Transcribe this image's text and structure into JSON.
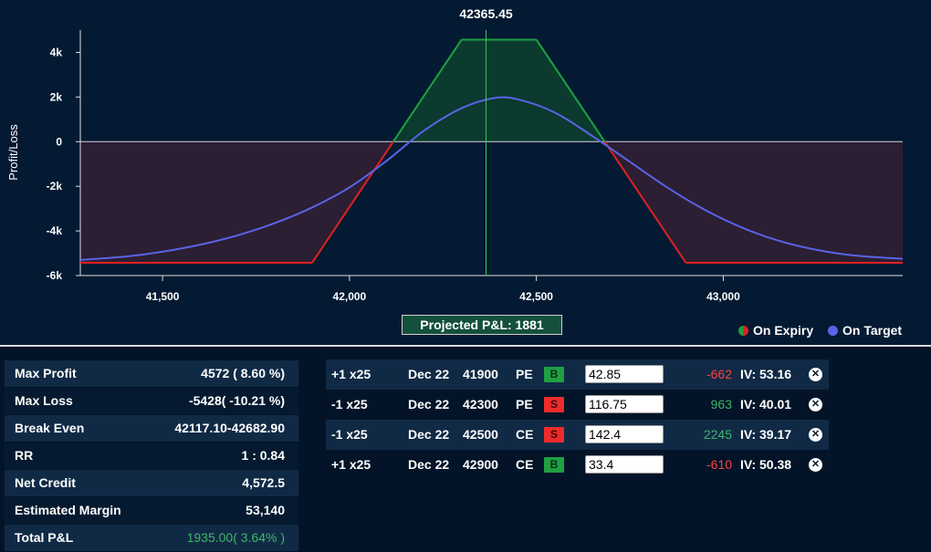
{
  "chart_data": {
    "type": "line",
    "ylabel": "Profit/Loss",
    "xlim": [
      41280,
      43480
    ],
    "ylim": [
      -6000,
      5000
    ],
    "x_ticks": [
      41500,
      42000,
      42500,
      43000
    ],
    "x_tick_labels": [
      "41,500",
      "42,000",
      "42,500",
      "43,000"
    ],
    "y_ticks": [
      -6000,
      -4000,
      -2000,
      0,
      2000,
      4000
    ],
    "y_tick_labels": [
      "-6k",
      "-4k",
      "-2k",
      "0",
      "2k",
      "4k"
    ],
    "spot": 42365.45,
    "spot_label": "42365.45",
    "series": [
      {
        "name": "On Expiry",
        "x": [
          41280,
          41900,
          42300,
          42500,
          42900,
          43480
        ],
        "y": [
          -5428,
          -5428,
          4572,
          4572,
          -5428,
          -5428
        ]
      },
      {
        "name": "On Target",
        "x": [
          41280,
          41400,
          41500,
          41600,
          41700,
          41800,
          41900,
          42000,
          42100,
          42200,
          42300,
          42385,
          42450,
          42550,
          42650,
          42750,
          42850,
          42950,
          43050,
          43150,
          43250,
          43350,
          43480
        ],
        "y": [
          -5300,
          -5150,
          -4930,
          -4620,
          -4200,
          -3650,
          -2950,
          -2050,
          -850,
          500,
          1500,
          1950,
          1900,
          1300,
          250,
          -900,
          -2050,
          -3050,
          -3850,
          -4450,
          -4850,
          -5100,
          -5250
        ]
      }
    ],
    "legend_position": "bottom-right",
    "colors": {
      "expiry_profit": "#1fa043",
      "expiry_loss": "#e02020",
      "target": "#5a63e6",
      "spot_line": "#2fd050",
      "profit_fill": "#0b3a2e",
      "loss_fill": "#2c1e33"
    }
  },
  "projected_pnl": "Projected P&L: 1881",
  "legend": {
    "expiry": "On Expiry",
    "target": "On Target"
  },
  "stats": [
    {
      "label": "Max Profit",
      "value": "4572 ( 8.60 %)"
    },
    {
      "label": "Max Loss",
      "value": "-5428( -10.21 %)"
    },
    {
      "label": "Break Even",
      "value": "42117.10-42682.90"
    },
    {
      "label": "RR",
      "value": "1 : 0.84"
    },
    {
      "label": "Net Credit",
      "value": "4,572.5"
    },
    {
      "label": "Estimated Margin",
      "value": "53,140"
    },
    {
      "label": "Total P&L",
      "value": "1935.00( 3.64% )",
      "color": "#3fb56a"
    }
  ],
  "legs": [
    {
      "qty": "+1 x25",
      "expiry": "Dec 22",
      "strike": "41900",
      "type": "PE",
      "side": "B",
      "price": "42.85",
      "pnl": "-662",
      "pnl_color": "#ff4040",
      "iv": "IV: 53.16"
    },
    {
      "qty": "-1 x25",
      "expiry": "Dec 22",
      "strike": "42300",
      "type": "PE",
      "side": "S",
      "price": "116.75",
      "pnl": "963",
      "pnl_color": "#3fb56a",
      "iv": "IV: 40.01"
    },
    {
      "qty": "-1 x25",
      "expiry": "Dec 22",
      "strike": "42500",
      "type": "CE",
      "side": "S",
      "price": "142.4",
      "pnl": "2245",
      "pnl_color": "#3fb56a",
      "iv": "IV: 39.17"
    },
    {
      "qty": "+1 x25",
      "expiry": "Dec 22",
      "strike": "42900",
      "type": "CE",
      "side": "B",
      "price": "33.4",
      "pnl": "-610",
      "pnl_color": "#ff4040",
      "iv": "IV: 50.38"
    }
  ],
  "badge_colors": {
    "B": "#1fa043",
    "S": "#ef2b2b"
  }
}
